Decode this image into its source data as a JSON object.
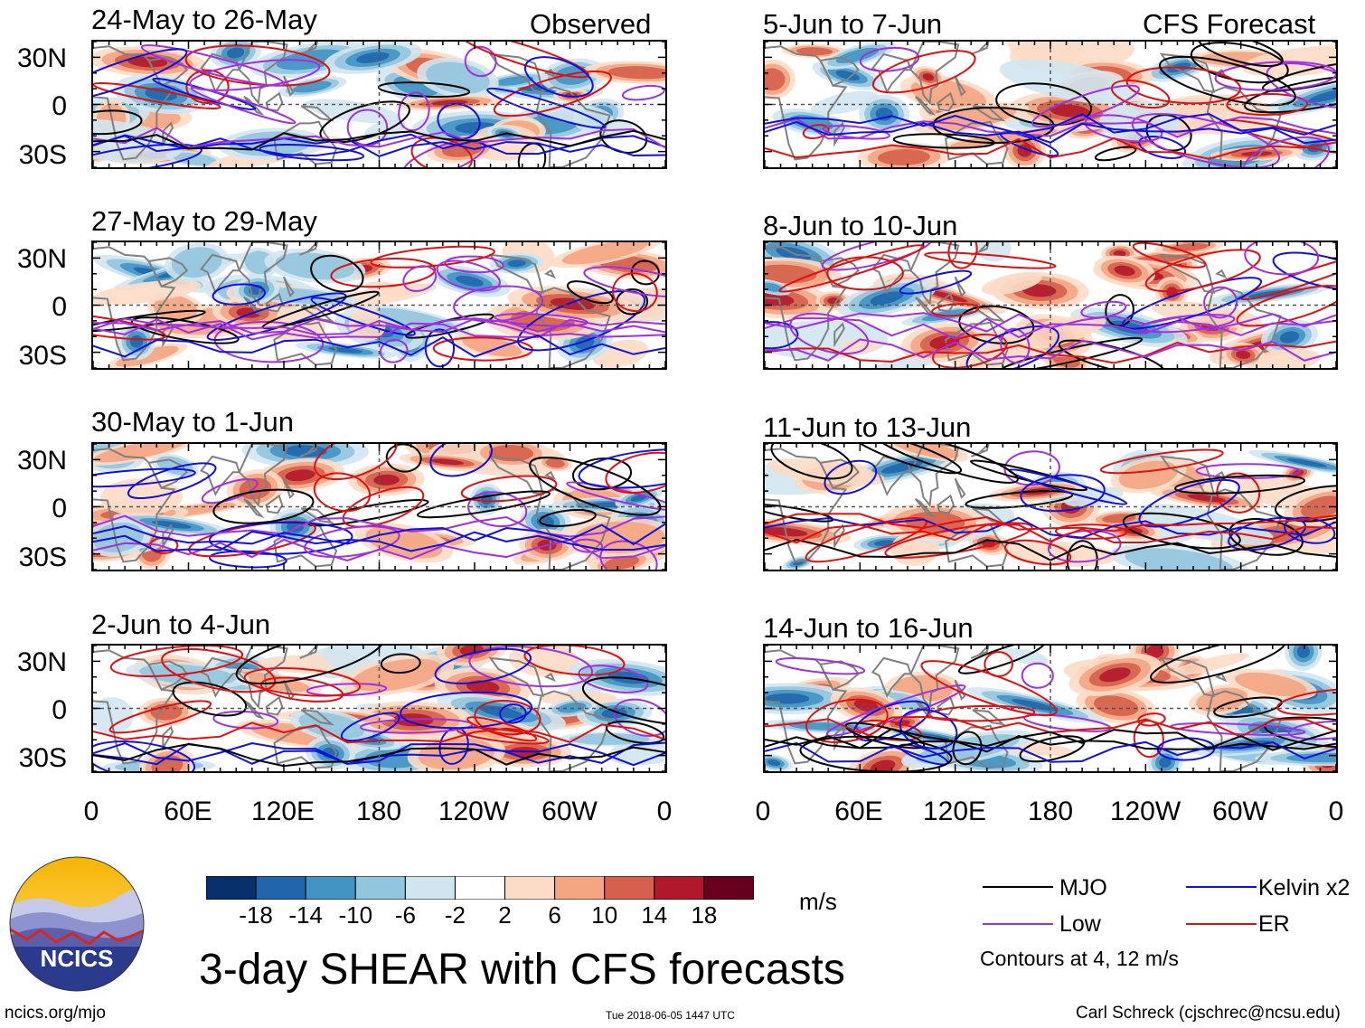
{
  "chart_data": {
    "type": "heatmap",
    "title": "3-day SHEAR with CFS forecasts",
    "units": "m/s",
    "observed_label": "Observed",
    "forecast_label": "CFS Forecast",
    "lat_ticks": [
      "30N",
      "0",
      "30S"
    ],
    "lon_ticks": [
      "0",
      "60E",
      "120E",
      "180",
      "120W",
      "60W",
      "0"
    ],
    "lat_range": [
      -40,
      40
    ],
    "lon_range": [
      0,
      360
    ],
    "panels": [
      {
        "title": "24-May to 26-May",
        "kind": "observed",
        "seed": 11
      },
      {
        "title": "27-May to 29-May",
        "kind": "observed",
        "seed": 23
      },
      {
        "title": "30-May to 1-Jun",
        "kind": "observed",
        "seed": 37
      },
      {
        "title": "2-Jun to 4-Jun",
        "kind": "observed",
        "seed": 41
      },
      {
        "title": "5-Jun to 7-Jun",
        "kind": "forecast",
        "seed": 53
      },
      {
        "title": "8-Jun to 10-Jun",
        "kind": "forecast",
        "seed": 67
      },
      {
        "title": "11-Jun to 13-Jun",
        "kind": "forecast",
        "seed": 71
      },
      {
        "title": "14-Jun to 16-Jun",
        "kind": "forecast",
        "seed": 89
      }
    ],
    "colorbar": {
      "levels": [
        "-18",
        "-14",
        "-10",
        "-6",
        "-2",
        "2",
        "6",
        "10",
        "14",
        "18"
      ],
      "colors": [
        "#08306b",
        "#2166ac",
        "#4393c3",
        "#92c5de",
        "#d1e5f0",
        "#ffffff",
        "#fddbc7",
        "#f4a582",
        "#d6604d",
        "#b2182b",
        "#67001f"
      ]
    },
    "contour_legend": [
      {
        "name": "MJO",
        "color": "#000000"
      },
      {
        "name": "Low",
        "color": "#a030e0"
      },
      {
        "name": "Kelvin x2",
        "color": "#1010e0"
      },
      {
        "name": "ER",
        "color": "#e01010"
      }
    ],
    "contour_note": "Contours at 4, 12 m/s"
  },
  "footer": {
    "url": "ncics.org/mjo",
    "timestamp": "Tue 2018-06-05 1447 UTC",
    "author": "Carl Schreck (cjschrec@ncsu.edu)",
    "logo_text": "NCICS"
  },
  "colors": {
    "continent": "#808080",
    "equator": "#555555"
  }
}
